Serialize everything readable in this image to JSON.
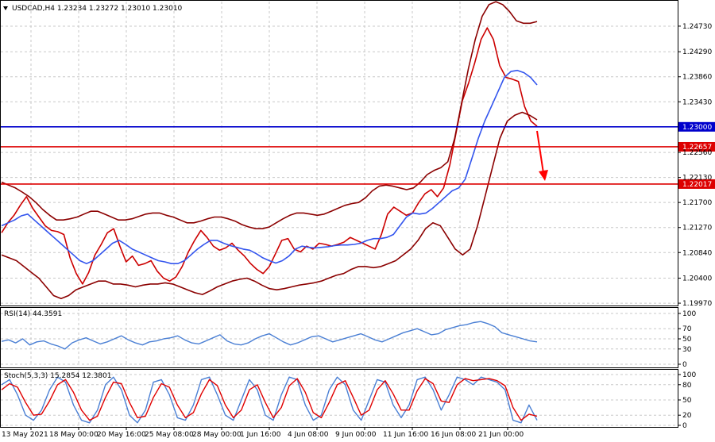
{
  "chart_data": [
    {
      "type": "line",
      "title": "USDCAD,H4 1.23234 1.23272 1.23010 1.23010",
      "x_ticks": [
        "13 May 2021",
        "18 May 00:00",
        "20 May 16:00",
        "25 May 08:00",
        "28 May 00:00",
        "1 Jun 16:00",
        "4 Jun 08:00",
        "9 Jun 00:00",
        "11 Jun 16:00",
        "16 Jun 08:00",
        "21 Jun 00:00"
      ],
      "y_ticks": [
        "1.24730",
        "1.24290",
        "1.23860",
        "1.23430",
        "1.22560",
        "1.22130",
        "1.21700",
        "1.21270",
        "1.20840",
        "1.20400",
        "1.19970"
      ],
      "ylim": [
        1.1993,
        1.2507
      ],
      "levels": [
        {
          "label": "1.23000",
          "value": 1.23,
          "color": "#0000cc"
        },
        {
          "label": "1.22657",
          "value": 1.22657,
          "color": "#dd0000"
        },
        {
          "label": "1.22017",
          "value": 1.22017,
          "color": "#dd0000"
        }
      ],
      "annotations": [
        {
          "type": "arrow",
          "direction": "down",
          "color": "#ff0000"
        }
      ],
      "series": [
        {
          "values": [
            1.2118,
            1.2135,
            1.2148,
            1.2165,
            1.218,
            1.216,
            1.2145,
            1.213,
            1.2122,
            1.212,
            1.2115,
            1.2075,
            1.2048,
            1.203,
            1.205,
            1.208,
            1.2098,
            1.2118,
            1.2125,
            1.2095,
            1.2068,
            1.2078,
            1.2062,
            1.2065,
            1.207,
            1.2052,
            1.204,
            1.2035,
            1.2042,
            1.206,
            1.2085,
            1.2105,
            1.2122,
            1.211,
            1.2095,
            1.2088,
            1.2092,
            1.21,
            1.2088,
            1.2078,
            1.2065,
            1.2055,
            1.2048,
            1.206,
            1.2082,
            1.2105,
            1.2108,
            1.209,
            1.2085,
            1.2095,
            1.209,
            1.21,
            1.2098,
            1.2095,
            1.2098,
            1.2102,
            1.211,
            1.2105,
            1.21,
            1.2095,
            1.209,
            1.2115,
            1.215,
            1.2162,
            1.2155,
            1.2148,
            1.2152,
            1.217,
            1.2185,
            1.2192,
            1.218,
            1.2195,
            1.2235,
            1.229,
            1.2345,
            1.2375,
            1.241,
            1.245,
            1.247,
            1.245,
            1.2405,
            1.2385,
            1.2382,
            1.2378,
            1.2335,
            1.231,
            1.2301
          ],
          "color": "#cc0000"
        },
        {
          "values": [
            1.213,
            1.2135,
            1.214,
            1.2147,
            1.215,
            1.214,
            1.213,
            1.212,
            1.211,
            1.21,
            1.209,
            1.208,
            1.207,
            1.2065,
            1.207,
            1.208,
            1.209,
            1.21,
            1.2105,
            1.2098,
            1.209,
            1.2085,
            1.208,
            1.2075,
            1.207,
            1.2068,
            1.2065,
            1.2065,
            1.207,
            1.208,
            1.209,
            1.2098,
            1.2105,
            1.2105,
            1.21,
            1.2096,
            1.2093,
            1.209,
            1.2088,
            1.2082,
            1.2075,
            1.207,
            1.2066,
            1.207,
            1.2078,
            1.209,
            1.2095,
            1.2093,
            1.2092,
            1.2093,
            1.2094,
            1.2096,
            1.2097,
            1.2097,
            1.2098,
            1.21,
            1.2105,
            1.2108,
            1.2108,
            1.211,
            1.2115,
            1.213,
            1.2145,
            1.2152,
            1.215,
            1.2152,
            1.216,
            1.217,
            1.218,
            1.219,
            1.2195,
            1.221,
            1.2245,
            1.228,
            1.231,
            1.2335,
            1.236,
            1.2385,
            1.2395,
            1.2397,
            1.2393,
            1.2385,
            1.2372
          ],
          "color": "#3355ee"
        },
        {
          "values": [
            1.2205,
            1.22,
            1.2195,
            1.2188,
            1.218,
            1.217,
            1.2158,
            1.2148,
            1.214,
            1.214,
            1.2142,
            1.2145,
            1.215,
            1.2155,
            1.2155,
            1.215,
            1.2145,
            1.214,
            1.214,
            1.2142,
            1.2146,
            1.215,
            1.2152,
            1.2152,
            1.2148,
            1.2145,
            1.214,
            1.2135,
            1.2135,
            1.2138,
            1.2142,
            1.2145,
            1.2145,
            1.2142,
            1.2138,
            1.2132,
            1.2128,
            1.2125,
            1.2125,
            1.2128,
            1.2135,
            1.2142,
            1.2148,
            1.2152,
            1.2152,
            1.215,
            1.2148,
            1.215,
            1.2155,
            1.216,
            1.2165,
            1.2168,
            1.217,
            1.2178,
            1.219,
            1.2198,
            1.22,
            1.2198,
            1.2195,
            1.2192,
            1.2195,
            1.2205,
            1.2218,
            1.2225,
            1.223,
            1.224,
            1.228,
            1.234,
            1.24,
            1.245,
            1.249,
            1.251,
            1.2515,
            1.251,
            1.2498,
            1.2482,
            1.2478,
            1.2478,
            1.2481
          ],
          "color": "#8b0000"
        },
        {
          "values": [
            1.208,
            1.2075,
            1.207,
            1.206,
            1.205,
            1.204,
            1.2025,
            1.201,
            1.2005,
            1.201,
            1.202,
            1.2025,
            1.203,
            1.2035,
            1.2035,
            1.203,
            1.203,
            1.2028,
            1.2025,
            1.2028,
            1.203,
            1.203,
            1.2032,
            1.203,
            1.2025,
            1.202,
            1.2015,
            1.2012,
            1.2018,
            1.2025,
            1.203,
            1.2035,
            1.2038,
            1.204,
            1.2035,
            1.2028,
            1.2022,
            1.202,
            1.2022,
            1.2025,
            1.2028,
            1.203,
            1.2032,
            1.2035,
            1.204,
            1.2045,
            1.2048,
            1.2055,
            1.206,
            1.206,
            1.2058,
            1.206,
            1.2065,
            1.207,
            1.208,
            1.209,
            1.2105,
            1.2125,
            1.2135,
            1.213,
            1.211,
            1.209,
            1.208,
            1.209,
            1.213,
            1.218,
            1.223,
            1.228,
            1.231,
            1.232,
            1.2325,
            1.232,
            1.2312
          ],
          "color": "#8b0000"
        }
      ]
    },
    {
      "type": "line",
      "title": "RSI(14) 44.3591",
      "y_ticks": [
        "100",
        "70",
        "50",
        "30",
        "0"
      ],
      "ylim": [
        0,
        100
      ],
      "series": [
        {
          "values": [
            45,
            48,
            42,
            50,
            38,
            44,
            46,
            40,
            36,
            30,
            42,
            48,
            52,
            46,
            40,
            44,
            50,
            56,
            48,
            42,
            38,
            44,
            46,
            50,
            52,
            56,
            48,
            42,
            40,
            46,
            52,
            58,
            46,
            40,
            38,
            42,
            50,
            56,
            60,
            52,
            44,
            38,
            42,
            48,
            54,
            56,
            50,
            44,
            48,
            52,
            56,
            60,
            54,
            48,
            44,
            50,
            56,
            62,
            66,
            70,
            64,
            58,
            60,
            68,
            72,
            76,
            78,
            82,
            84,
            80,
            74,
            62,
            58,
            54,
            50,
            46,
            44
          ],
          "color": "#4a7fd4"
        }
      ]
    },
    {
      "type": "line",
      "title": "Stoch(5,3,3) 15.2854 12.3801",
      "y_ticks": [
        "100",
        "80",
        "50",
        "20",
        "0"
      ],
      "ylim": [
        0,
        100
      ],
      "x_ticks": [
        "13 May 2021",
        "18 May 00:00",
        "20 May 16:00",
        "25 May 08:00",
        "28 May 00:00",
        "1 Jun 16:00",
        "4 Jun 08:00",
        "9 Jun 00:00",
        "11 Jun 16:00",
        "16 Jun 08:00",
        "21 Jun 00:00"
      ],
      "series": [
        {
          "values": [
            80,
            90,
            60,
            20,
            10,
            30,
            70,
            95,
            85,
            40,
            10,
            5,
            30,
            80,
            95,
            70,
            20,
            5,
            30,
            85,
            90,
            60,
            15,
            10,
            40,
            90,
            95,
            60,
            20,
            10,
            50,
            90,
            70,
            20,
            10,
            60,
            95,
            90,
            40,
            10,
            20,
            70,
            95,
            80,
            30,
            10,
            50,
            90,
            85,
            40,
            15,
            40,
            90,
            95,
            70,
            30,
            60,
            95,
            90,
            80,
            95,
            90,
            85,
            70,
            10,
            5,
            40,
            10
          ],
          "color": "#4a7fd4"
        },
        {
          "values": [
            70,
            82,
            75,
            45,
            20,
            22,
            48,
            80,
            90,
            65,
            30,
            10,
            18,
            55,
            85,
            82,
            45,
            15,
            18,
            55,
            82,
            75,
            40,
            15,
            25,
            62,
            90,
            78,
            40,
            15,
            30,
            70,
            80,
            45,
            15,
            35,
            78,
            92,
            65,
            25,
            15,
            45,
            80,
            88,
            55,
            20,
            30,
            70,
            88,
            62,
            30,
            30,
            68,
            92,
            82,
            48,
            45,
            80,
            92,
            88,
            90,
            92,
            88,
            78,
            35,
            10,
            22,
            18
          ],
          "color": "#e00000"
        }
      ]
    }
  ]
}
